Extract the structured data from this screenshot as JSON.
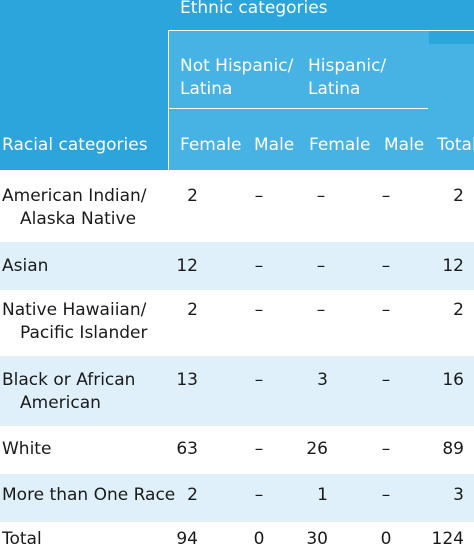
{
  "header": {
    "ethnic_title": "Ethnic categories",
    "not_hispanic_line1": "Not Hispanic/",
    "not_hispanic_line2": "Latina",
    "hispanic_line1": "Hispanic/",
    "hispanic_line2": "Latina",
    "racial_title": "Racial categories",
    "female_1": "Female",
    "male_1": "Male",
    "female_2": "Female",
    "male_2": "Male",
    "total": "Total"
  },
  "rows": [
    {
      "label1": "American Indian/",
      "label2": "Alaska Native",
      "nh_female": "2",
      "nh_male": "–",
      "h_female": "–",
      "h_male": "–",
      "total": "2"
    },
    {
      "label1": "Asian",
      "label2": "",
      "nh_female": "12",
      "nh_male": "–",
      "h_female": "–",
      "h_male": "–",
      "total": "12"
    },
    {
      "label1": "Native Hawaiian/",
      "label2": "Pacific Islander",
      "nh_female": "2",
      "nh_male": "–",
      "h_female": "–",
      "h_male": "–",
      "total": "2"
    },
    {
      "label1": "Black or African",
      "label2": "American",
      "nh_female": "13",
      "nh_male": "–",
      "h_female": "3",
      "h_male": "–",
      "total": "16"
    },
    {
      "label1": "White",
      "label2": "",
      "nh_female": "63",
      "nh_male": "–",
      "h_female": "26",
      "h_male": "–",
      "total": "89"
    },
    {
      "label1": "More than One Race",
      "label2": "",
      "nh_female": "2",
      "nh_male": "–",
      "h_female": "1",
      "h_male": "–",
      "total": "3"
    },
    {
      "label1": "Total",
      "label2": "",
      "nh_female": "94",
      "nh_male": "0",
      "h_female": "30",
      "h_male": "0",
      "total": "124"
    }
  ],
  "colors": {
    "header": "#2ba5dc",
    "alt_row": "#dff0fa",
    "header_text": "#ffffff"
  }
}
